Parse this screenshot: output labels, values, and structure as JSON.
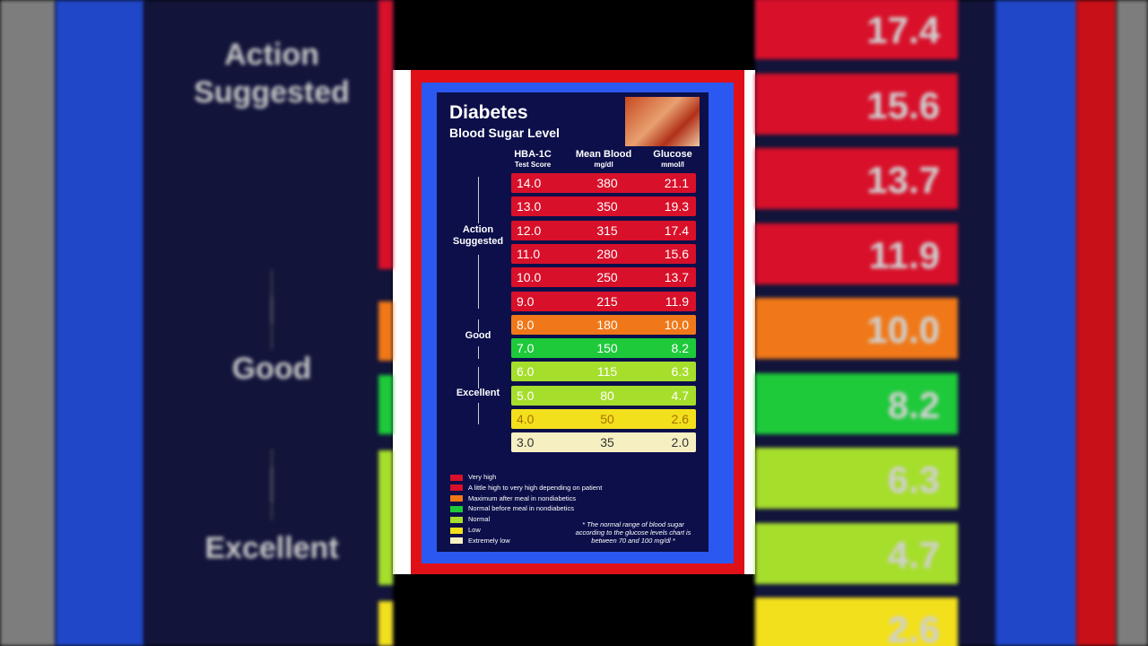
{
  "background_left": {
    "labels": [
      "Action\nSuggested",
      "Good",
      "Excellent"
    ]
  },
  "background_right": {
    "values": [
      "17.4",
      "15.6",
      "13.7",
      "11.9",
      "10.0",
      "8.2",
      "6.3",
      "4.7",
      "2.6"
    ]
  },
  "card": {
    "title": "Diabetes",
    "subtitle": "Blood Sugar Level",
    "table": {
      "headers": [
        [
          "HBA-1C",
          "Test Score"
        ],
        [
          "Mean Blood",
          "mg/dl"
        ],
        [
          "Glucose",
          "mmol/l"
        ]
      ],
      "rows": [
        [
          "14.0",
          "380",
          "21.1"
        ],
        [
          "13.0",
          "350",
          "19.3"
        ],
        [
          "12.0",
          "315",
          "17.4"
        ],
        [
          "11.0",
          "280",
          "15.6"
        ],
        [
          "10.0",
          "250",
          "13.7"
        ],
        [
          "9.0",
          "215",
          "11.9"
        ],
        [
          "8.0",
          "180",
          "10.0"
        ],
        [
          "7.0",
          "150",
          "8.2"
        ],
        [
          "6.0",
          "115",
          "6.3"
        ],
        [
          "5.0",
          "80",
          "4.7"
        ],
        [
          "4.0",
          "50",
          "2.6"
        ],
        [
          "3.0",
          "35",
          "2.0"
        ]
      ]
    },
    "side_labels": [
      "Action\nSuggested",
      "Good",
      "Excellent"
    ],
    "legend": [
      "Very high",
      "A little high to very high depending on patient",
      "Maximum after meal in nondiabetics",
      "Normal before meal in nondiabetics",
      "Normal",
      "Low",
      "Extremely low"
    ],
    "footnote": "* The normal range of blood sugar according to the glucose levels chart is between 70 and 100 mg/dl *"
  }
}
